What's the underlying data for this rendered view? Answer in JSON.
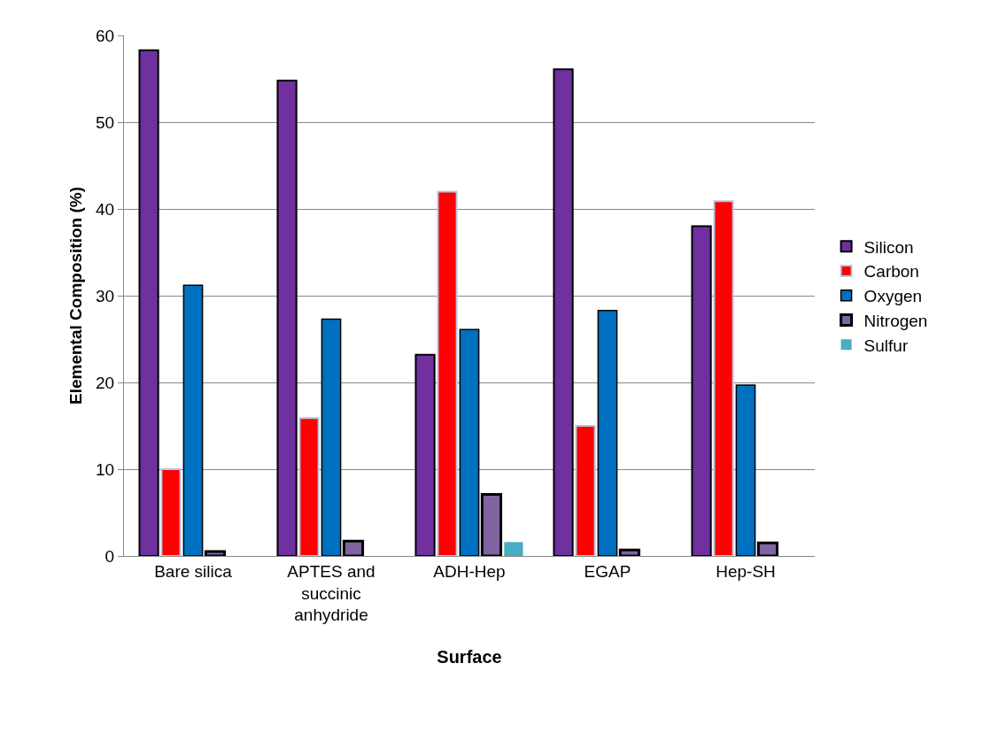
{
  "chart_data": {
    "type": "bar",
    "xlabel": "Surface",
    "ylabel": "Elemental Composition (%)",
    "categories": [
      "Bare silica",
      "APTES and succinic anhydride",
      "ADH-Hep",
      "EGAP",
      "Hep-SH"
    ],
    "series": [
      {
        "name": "Silicon",
        "color": "#7030a0",
        "values": [
          58.3,
          54.8,
          23.2,
          56.1,
          38.0
        ]
      },
      {
        "name": "Carbon",
        "color": "#ff0000",
        "values": [
          10.0,
          15.9,
          42.0,
          15.0,
          40.9
        ]
      },
      {
        "name": "Oxygen",
        "color": "#0070c0",
        "values": [
          31.2,
          27.3,
          26.1,
          28.3,
          19.7
        ]
      },
      {
        "name": "Nitrogen",
        "color": "#8064a2",
        "values": [
          0.5,
          1.7,
          7.1,
          0.7,
          1.5
        ]
      },
      {
        "name": "Sulfur",
        "color": "#4bacc6",
        "values": [
          null,
          null,
          1.6,
          null,
          null
        ]
      }
    ],
    "ylim": [
      0,
      60
    ],
    "yticks": [
      0,
      10,
      20,
      30,
      40,
      50,
      60
    ],
    "grid": "y",
    "legend": "right"
  }
}
